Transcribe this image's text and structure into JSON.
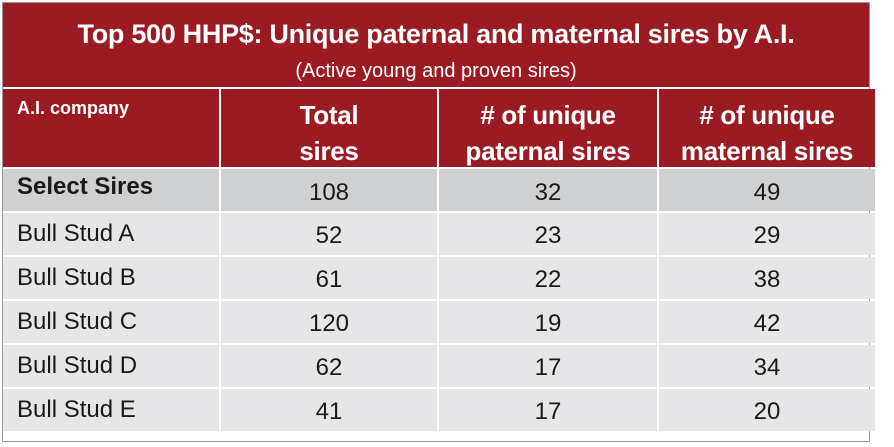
{
  "title": "Top 500 HHP$: Unique paternal and maternal sires by A.I.",
  "subtitle": "(Active young and proven sires)",
  "colors": {
    "header_bg": "#9a1c22",
    "header_text": "#ffffff",
    "highlight_row": "#cfd0d2",
    "row_bg": "#e6e6e8"
  },
  "columns": [
    "A.I. company",
    "Total sires",
    "# of unique paternal sires",
    "# of unique maternal sires"
  ],
  "columns_display": [
    [
      "A.I. company"
    ],
    [
      "Total",
      "sires"
    ],
    [
      "# of unique",
      "paternal sires"
    ],
    [
      "# of unique",
      "maternal sires"
    ]
  ],
  "rows": [
    {
      "company": "Select Sires",
      "total": "108",
      "paternal": "32",
      "maternal": "49"
    },
    {
      "company": "Bull Stud A",
      "total": "52",
      "paternal": "23",
      "maternal": "29"
    },
    {
      "company": "Bull Stud B",
      "total": "61",
      "paternal": "22",
      "maternal": "38"
    },
    {
      "company": "Bull Stud C",
      "total": "120",
      "paternal": "19",
      "maternal": "42"
    },
    {
      "company": "Bull Stud D",
      "total": "62",
      "paternal": "17",
      "maternal": "34"
    },
    {
      "company": "Bull Stud E",
      "total": "41",
      "paternal": "17",
      "maternal": "20"
    }
  ]
}
